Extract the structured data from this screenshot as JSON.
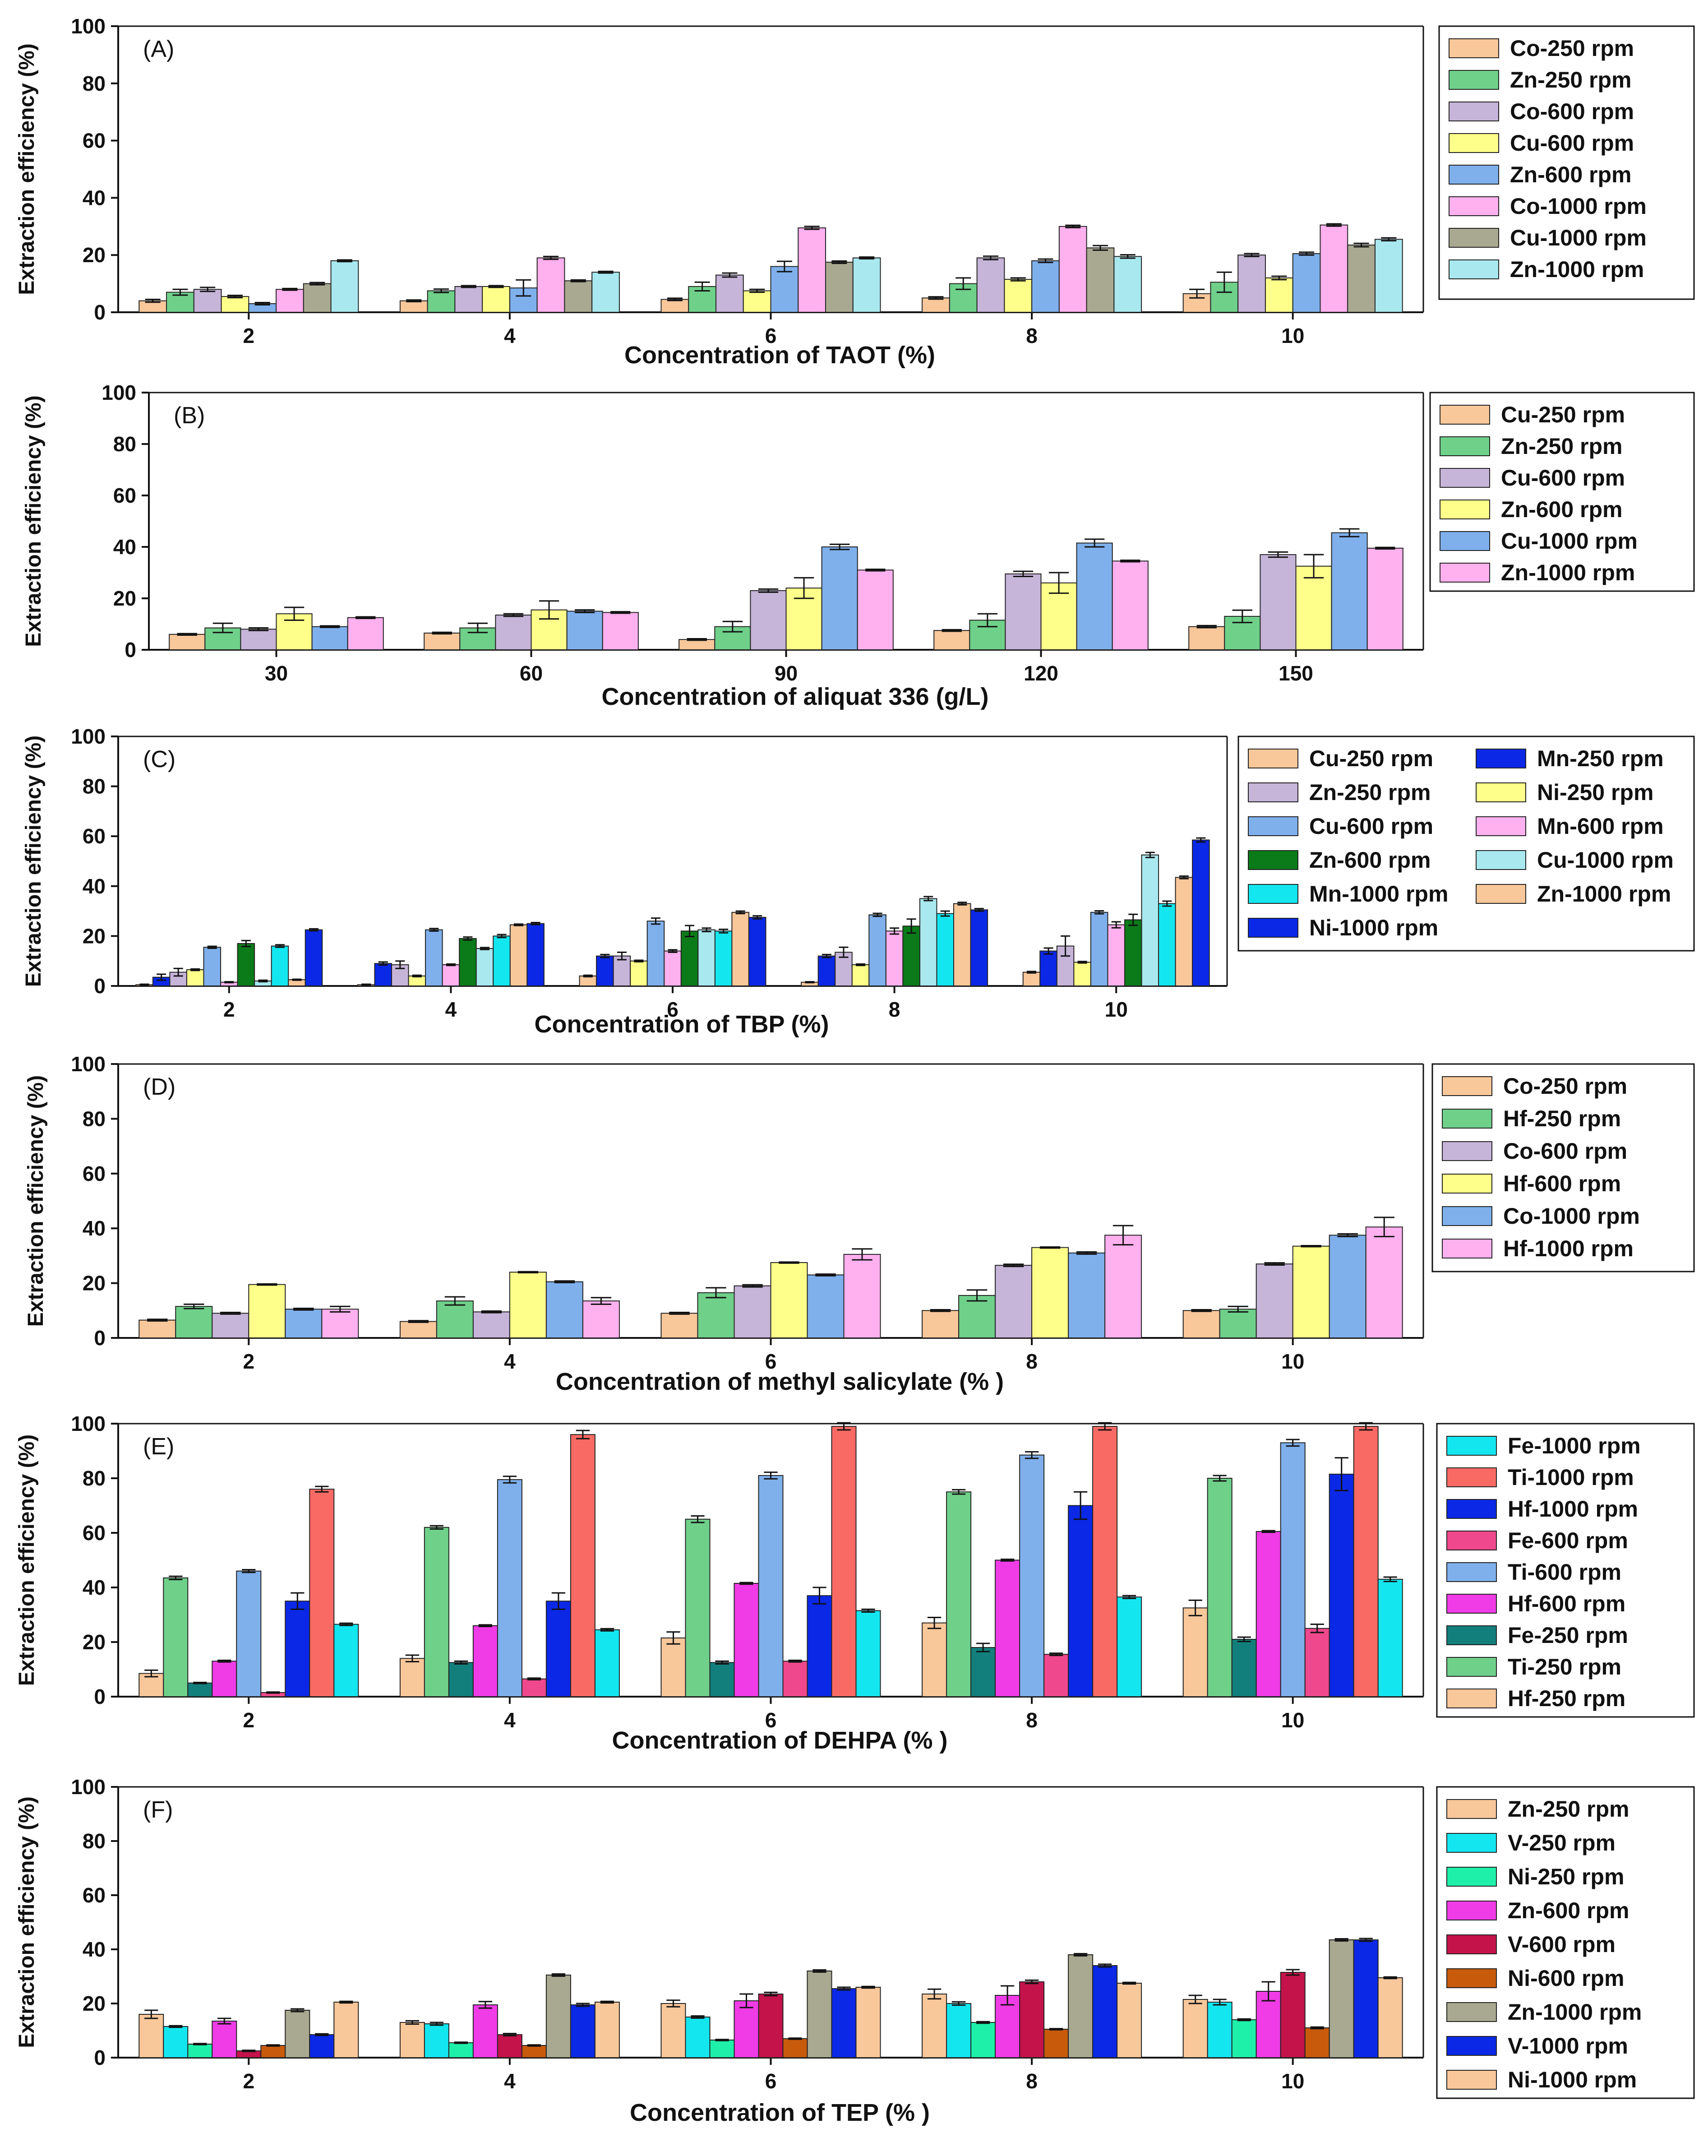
{
  "chart_data": [
    {
      "type": "bar",
      "panel": "(A)",
      "xlabel": "Concentration of TAOT (%)",
      "ylabel": "Extraction efficiency (%)",
      "categories": [
        "2",
        "4",
        "6",
        "8",
        "10"
      ],
      "ylim": [
        0,
        100
      ],
      "yticks": [
        "0",
        "20",
        "40",
        "60",
        "80",
        "100"
      ],
      "legend_columns": 1,
      "series": [
        {
          "name": "Co-250 rpm",
          "color": "#f8c79a",
          "values": [
            4,
            4,
            4.5,
            5,
            6.5
          ],
          "err": [
            0.5,
            0.3,
            0.4,
            0.4,
            1.5
          ]
        },
        {
          "name": "Zn-250 rpm",
          "color": "#6fd08a",
          "values": [
            7,
            7.5,
            9,
            10,
            10.5
          ],
          "err": [
            1,
            0.6,
            1.5,
            2,
            3.5
          ]
        },
        {
          "name": "Co-600 rpm",
          "color": "#c7b4d9",
          "values": [
            8,
            9,
            13,
            19,
            20
          ],
          "err": [
            0.7,
            0.3,
            0.7,
            0.6,
            0.5
          ]
        },
        {
          "name": "Cu-600 rpm",
          "color": "#feff8a",
          "values": [
            5.5,
            9,
            7.5,
            11.5,
            12
          ],
          "err": [
            0.4,
            0.3,
            0.5,
            0.5,
            0.6
          ]
        },
        {
          "name": "Zn-600 rpm",
          "color": "#7fb0ec",
          "values": [
            3,
            8.5,
            16,
            18,
            20.5
          ],
          "err": [
            0.4,
            2.8,
            1.8,
            0.6,
            0.5
          ]
        },
        {
          "name": "Co-1000 rpm",
          "color": "#ffb0ee",
          "values": [
            8,
            19,
            29.5,
            30,
            30.5
          ],
          "err": [
            0.3,
            0.5,
            0.5,
            0.4,
            0.4
          ]
        },
        {
          "name": "Cu-1000 rpm",
          "color": "#a9a991",
          "values": [
            10,
            11,
            17.5,
            22.5,
            23.5
          ],
          "err": [
            0.4,
            0.3,
            0.4,
            0.8,
            0.6
          ]
        },
        {
          "name": "Zn-1000 rpm",
          "color": "#a9e8ef",
          "values": [
            18,
            14,
            19,
            19.5,
            25.5
          ],
          "err": [
            0.3,
            0.3,
            0.3,
            0.6,
            0.5
          ]
        }
      ]
    },
    {
      "type": "bar",
      "panel": "(B)",
      "xlabel": "Concentration of aliquat 336 (g/L)",
      "ylabel": "Extraction efficiency (%)",
      "categories": [
        "30",
        "60",
        "90",
        "120",
        "150"
      ],
      "ylim": [
        0,
        100
      ],
      "yticks": [
        "0",
        "20",
        "40",
        "60",
        "80",
        "100"
      ],
      "legend_columns": 1,
      "series": [
        {
          "name": "Cu-250 rpm",
          "color": "#f8c79a",
          "values": [
            6,
            6.5,
            4,
            7.5,
            9
          ],
          "err": [
            0.3,
            0.3,
            0.3,
            0.3,
            0.4
          ]
        },
        {
          "name": "Zn-250 rpm",
          "color": "#6fd08a",
          "values": [
            8.5,
            8.5,
            9,
            11.5,
            13
          ],
          "err": [
            1.8,
            1.8,
            2,
            2.5,
            2.4
          ]
        },
        {
          "name": "Cu-600 rpm",
          "color": "#c7b4d9",
          "values": [
            8,
            13.5,
            23,
            29.5,
            37
          ],
          "err": [
            0.5,
            0.5,
            0.6,
            1,
            1
          ]
        },
        {
          "name": "Zn-600 rpm",
          "color": "#feff8a",
          "values": [
            14,
            15.5,
            24,
            26,
            32.5
          ],
          "err": [
            2.5,
            3.5,
            4,
            4,
            4.5
          ]
        },
        {
          "name": "Cu-1000 rpm",
          "color": "#7fb0ec",
          "values": [
            9,
            15,
            40,
            41.5,
            45.5
          ],
          "err": [
            0.3,
            0.5,
            1,
            1.5,
            1.5
          ]
        },
        {
          "name": "Zn-1000 rpm",
          "color": "#ffb0ee",
          "values": [
            12.5,
            14.5,
            31,
            34.5,
            39.5
          ],
          "err": [
            0.3,
            0.3,
            0.3,
            0.3,
            0.3
          ]
        }
      ]
    },
    {
      "type": "bar",
      "panel": "(C)",
      "xlabel": "Concentration of TBP (%)",
      "ylabel": "Extraction efficiency (%)",
      "categories": [
        "2",
        "4",
        "6",
        "8",
        "10"
      ],
      "ylim": [
        0,
        100
      ],
      "yticks": [
        "0",
        "20",
        "40",
        "60",
        "80",
        "100"
      ],
      "legend_columns": 2,
      "series": [
        {
          "name": "Cu-250 rpm",
          "color": "#f8c79a",
          "values": [
            0.5,
            0.5,
            4,
            1.5,
            5.5
          ],
          "err": [
            0.2,
            0.2,
            0.3,
            0.2,
            0.3
          ]
        },
        {
          "name": "Mn-250 rpm",
          "color": "#0b28e6",
          "values": [
            3.5,
            9,
            12,
            12,
            14
          ],
          "err": [
            1.2,
            0.6,
            0.6,
            0.6,
            1.2
          ]
        },
        {
          "name": "Zn-250 rpm",
          "color": "#c7b4d9",
          "values": [
            5.5,
            8.5,
            12,
            13.5,
            16
          ],
          "err": [
            1.5,
            1.5,
            1.5,
            2,
            4
          ]
        },
        {
          "name": "Ni-250 rpm",
          "color": "#feff8a",
          "values": [
            6.5,
            4,
            10,
            8.5,
            9.5
          ],
          "err": [
            0.3,
            0.3,
            0.3,
            0.3,
            0.3
          ]
        },
        {
          "name": "Cu-600 rpm",
          "color": "#7fb0ec",
          "values": [
            15.5,
            22.5,
            26,
            28.5,
            29.5
          ],
          "err": [
            0.4,
            0.5,
            1.2,
            0.6,
            0.6
          ]
        },
        {
          "name": "Mn-600 rpm",
          "color": "#ffb0ee",
          "values": [
            1.5,
            8.5,
            14,
            22,
            24.5
          ],
          "err": [
            0.2,
            0.3,
            0.5,
            1.2,
            1.2
          ]
        },
        {
          "name": "Zn-600 rpm",
          "color": "#0b7a19",
          "values": [
            17,
            19,
            22,
            24,
            26.5
          ],
          "err": [
            1.2,
            0.6,
            2.2,
            2.8,
            2.2
          ]
        },
        {
          "name": "Cu-1000 rpm",
          "color": "#a9e8ef",
          "values": [
            2,
            15,
            22.5,
            35,
            52.5
          ],
          "err": [
            0.3,
            0.4,
            0.7,
            0.8,
            1
          ]
        },
        {
          "name": "Mn-1000 rpm",
          "color": "#14e6f0",
          "values": [
            16,
            20,
            22,
            29,
            33
          ],
          "err": [
            0.5,
            0.6,
            0.7,
            1,
            1
          ]
        },
        {
          "name": "Zn-1000 rpm",
          "color": "#f8c79a",
          "values": [
            2.5,
            24.5,
            29.5,
            33,
            43.5
          ],
          "err": [
            0.2,
            0.3,
            0.5,
            0.5,
            0.5
          ]
        },
        {
          "name": "Ni-1000 rpm",
          "color": "#0b28e6",
          "values": [
            22.5,
            25,
            27.5,
            30.5,
            58.5
          ],
          "err": [
            0.4,
            0.4,
            0.6,
            0.5,
            0.8
          ]
        }
      ]
    },
    {
      "type": "bar",
      "panel": "(D)",
      "xlabel": "Concentration of methyl salicylate (% )",
      "ylabel": "Extraction efficiency (%)",
      "categories": [
        "2",
        "4",
        "6",
        "8",
        "10"
      ],
      "ylim": [
        0,
        100
      ],
      "yticks": [
        "0",
        "20",
        "40",
        "60",
        "80",
        "100"
      ],
      "legend_columns": 1,
      "series": [
        {
          "name": "Co-250 rpm",
          "color": "#f8c79a",
          "values": [
            6.5,
            6,
            9,
            10,
            10
          ],
          "err": [
            0.3,
            0.3,
            0.3,
            0.3,
            0.3
          ]
        },
        {
          "name": "Hf-250 rpm",
          "color": "#6fd08a",
          "values": [
            11.5,
            13.5,
            16.5,
            15.5,
            10.5
          ],
          "err": [
            0.8,
            1.5,
            1.8,
            2,
            1
          ]
        },
        {
          "name": "Co-600 rpm",
          "color": "#c7b4d9",
          "values": [
            9,
            9.5,
            19,
            26.5,
            27
          ],
          "err": [
            0.3,
            0.3,
            0.4,
            0.4,
            0.4
          ]
        },
        {
          "name": "Hf-600 rpm",
          "color": "#feff8a",
          "values": [
            19.5,
            24,
            27.5,
            33,
            33.5
          ],
          "err": [
            0.2,
            0.2,
            0.2,
            0.2,
            0.2
          ]
        },
        {
          "name": "Co-1000 rpm",
          "color": "#7fb0ec",
          "values": [
            10.5,
            20.5,
            23,
            31,
            37.5
          ],
          "err": [
            0.3,
            0.3,
            0.3,
            0.4,
            0.5
          ]
        },
        {
          "name": "Hf-1000 rpm",
          "color": "#ffb0ee",
          "values": [
            10.5,
            13.5,
            30.5,
            37.5,
            40.5
          ],
          "err": [
            1,
            1.2,
            2,
            3.5,
            3.5
          ]
        }
      ]
    },
    {
      "type": "bar",
      "panel": "(E)",
      "xlabel": "Concentration of DEHPA (% )",
      "ylabel": "Extraction efficiency (%)",
      "categories": [
        "2",
        "4",
        "6",
        "8",
        "10"
      ],
      "ylim": [
        0,
        100
      ],
      "yticks": [
        "0",
        "20",
        "40",
        "60",
        "80",
        "100"
      ],
      "legend_columns": 1,
      "bar_order": [
        8,
        7,
        6,
        5,
        4,
        3,
        2,
        1,
        0
      ],
      "series": [
        {
          "name": "Fe-1000 rpm",
          "color": "#14e6f0",
          "values": [
            26.5,
            24.5,
            31.5,
            36.5,
            43
          ],
          "err": [
            0.4,
            0.4,
            0.5,
            0.5,
            0.8
          ]
        },
        {
          "name": "Ti-1000 rpm",
          "color": "#fa6a64",
          "values": [
            76,
            96,
            99,
            99,
            99
          ],
          "err": [
            1,
            1.5,
            1.3,
            1.3,
            1.3
          ]
        },
        {
          "name": "Hf-1000 rpm",
          "color": "#0b28e6",
          "values": [
            35,
            35,
            37,
            70,
            81.5
          ],
          "err": [
            3,
            3,
            3,
            5,
            6
          ]
        },
        {
          "name": "Fe-600 rpm",
          "color": "#f0488c",
          "values": [
            1.5,
            6.5,
            13,
            15.5,
            25
          ],
          "err": [
            0.2,
            0.3,
            0.3,
            0.4,
            1.5
          ]
        },
        {
          "name": "Ti-600 rpm",
          "color": "#7fb0ec",
          "values": [
            46,
            79.5,
            81,
            88.5,
            93
          ],
          "err": [
            0.5,
            1.2,
            1.2,
            1.2,
            1.2
          ]
        },
        {
          "name": "Hf-600 rpm",
          "color": "#f03ce6",
          "values": [
            13,
            26,
            41.5,
            50,
            60.5
          ],
          "err": [
            0.3,
            0.3,
            0.3,
            0.3,
            0.3
          ]
        },
        {
          "name": "Fe-250 rpm",
          "color": "#127f7c",
          "values": [
            5,
            12.5,
            12.5,
            18,
            21
          ],
          "err": [
            0.2,
            0.5,
            0.5,
            1.5,
            0.8
          ]
        },
        {
          "name": "Ti-250 rpm",
          "color": "#6fd08a",
          "values": [
            43.5,
            62,
            65,
            75,
            80
          ],
          "err": [
            0.6,
            0.6,
            1.2,
            0.8,
            1
          ]
        },
        {
          "name": "Hf-250 rpm",
          "color": "#f8c79a",
          "values": [
            8.5,
            14,
            21.5,
            27,
            32.5
          ],
          "err": [
            1.2,
            1.2,
            2.2,
            2,
            2.8
          ]
        }
      ]
    },
    {
      "type": "bar",
      "panel": "(F)",
      "xlabel": "Concentration of TEP (% )",
      "ylabel": "Extraction efficiency (%)",
      "categories": [
        "2",
        "4",
        "6",
        "8",
        "10"
      ],
      "ylim": [
        0,
        100
      ],
      "yticks": [
        "0",
        "20",
        "40",
        "60",
        "80",
        "100"
      ],
      "legend_columns": 1,
      "series": [
        {
          "name": "Zn-250 rpm",
          "color": "#f8c79a",
          "values": [
            16,
            13,
            20,
            23.5,
            21.5
          ],
          "err": [
            1.5,
            0.6,
            1.2,
            1.8,
            1.5
          ]
        },
        {
          "name": "V-250 rpm",
          "color": "#14e6f0",
          "values": [
            11.5,
            12.5,
            15,
            20,
            20.5
          ],
          "err": [
            0.3,
            0.5,
            0.4,
            0.6,
            1
          ]
        },
        {
          "name": "Ni-250 rpm",
          "color": "#1ef0aa",
          "values": [
            5,
            5.5,
            6.5,
            13,
            14
          ],
          "err": [
            0.2,
            0.2,
            0.2,
            0.3,
            0.3
          ]
        },
        {
          "name": "Zn-600 rpm",
          "color": "#f03ce6",
          "values": [
            13.5,
            19.5,
            21,
            23,
            24.5
          ],
          "err": [
            1,
            1.2,
            2.5,
            3.5,
            3.5
          ]
        },
        {
          "name": "V-600 rpm",
          "color": "#c3134a",
          "values": [
            2.5,
            8.5,
            23.5,
            28,
            31.5
          ],
          "err": [
            0.2,
            0.4,
            0.6,
            0.6,
            1
          ]
        },
        {
          "name": "Ni-600 rpm",
          "color": "#c85a0c",
          "values": [
            4.5,
            4.5,
            7,
            10.5,
            11
          ],
          "err": [
            0.2,
            0.2,
            0.2,
            0.2,
            0.3
          ]
        },
        {
          "name": "Zn-1000 rpm",
          "color": "#a9a991",
          "values": [
            17.5,
            30.5,
            32,
            38,
            43.5
          ],
          "err": [
            0.5,
            0.4,
            0.4,
            0.4,
            0.4
          ]
        },
        {
          "name": "V-1000 rpm",
          "color": "#0b28e6",
          "values": [
            8.5,
            19.5,
            25.5,
            34,
            43.5
          ],
          "err": [
            0.3,
            0.5,
            0.5,
            0.5,
            0.5
          ]
        },
        {
          "name": "Ni-1000 rpm",
          "color": "#f8c79a",
          "values": [
            20.5,
            20.5,
            26,
            27.5,
            29.5
          ],
          "err": [
            0.3,
            0.3,
            0.3,
            0.3,
            0.3
          ]
        }
      ]
    }
  ]
}
